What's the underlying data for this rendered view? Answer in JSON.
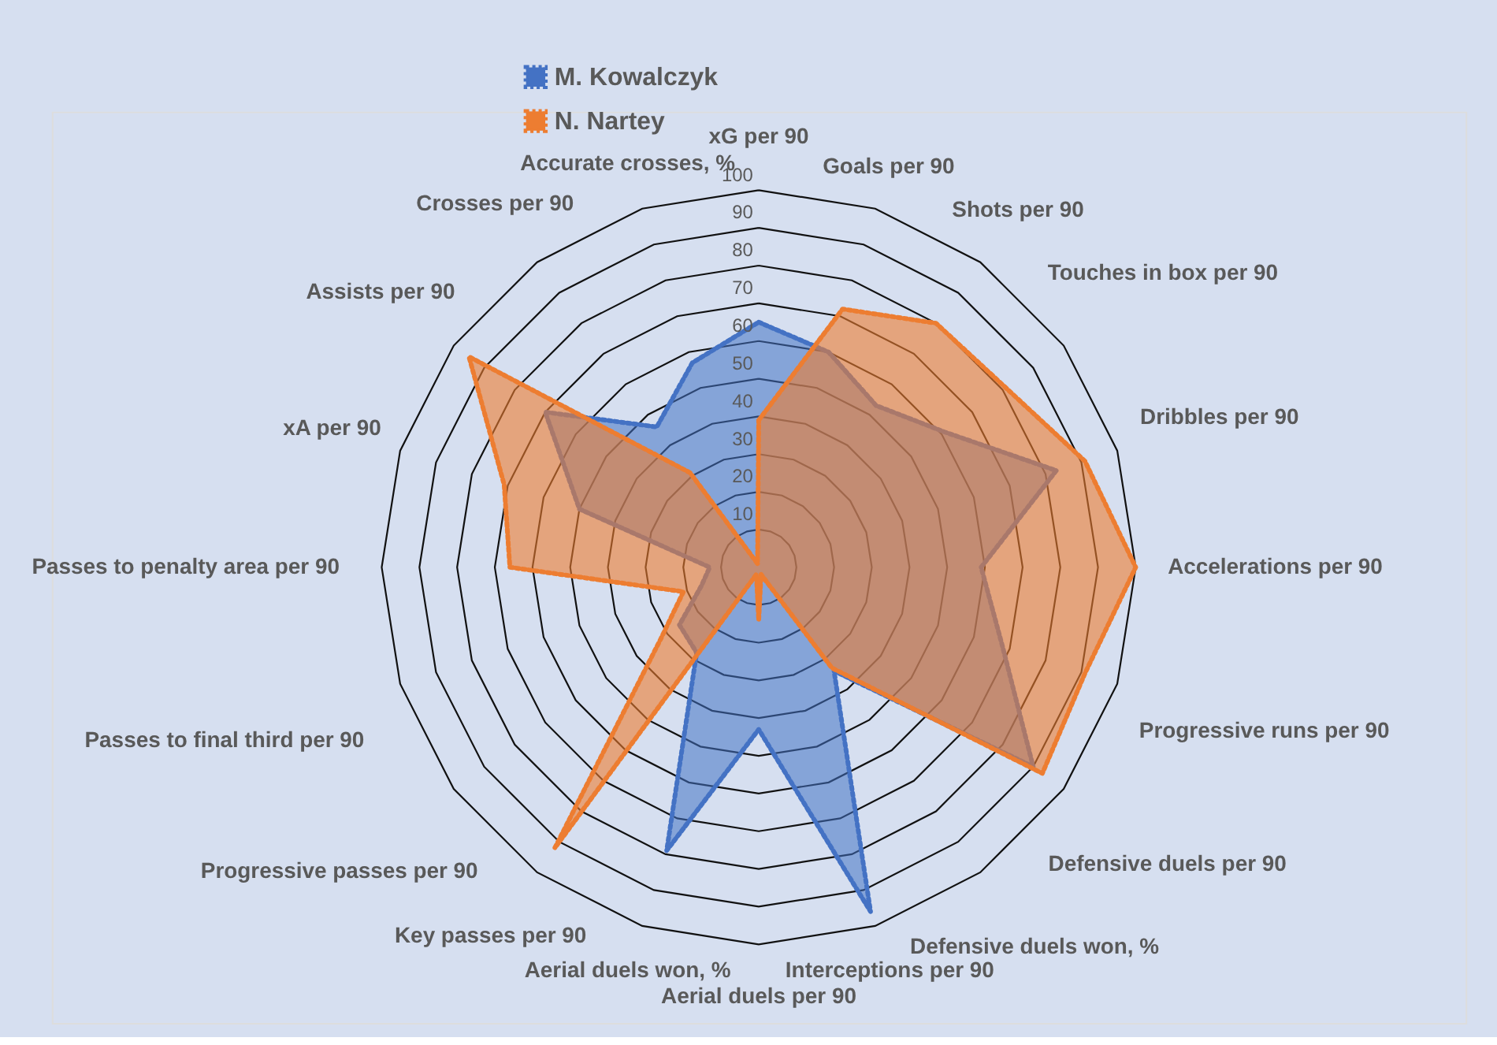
{
  "chart_data": {
    "type": "radar",
    "categories": [
      "xG per 90",
      "Goals per 90",
      "Shots per 90",
      "Touches in box per 90",
      "Dribbles per 90",
      "Accelerations per 90",
      "Progressive runs per 90",
      "Defensive duels per 90",
      "Defensive duels won, %",
      "Interceptions per 90",
      "Aerial duels per 90",
      "Aerial duels won, %",
      "Key passes per 90",
      "Progressive passes per 90",
      "Passes to final third per 90",
      "Passes to penalty area per 90",
      "xA per 90",
      "Assists per 90",
      "Crosses per 90",
      "Accurate crosses, %"
    ],
    "series": [
      {
        "name": "M. Kowalczyk",
        "color": "#4472c4",
        "values": [
          65,
          60,
          53,
          61,
          83,
          59,
          68,
          90,
          34,
          96,
          43,
          79,
          28,
          26,
          16,
          13,
          50,
          70,
          46,
          57
        ]
      },
      {
        "name": "N. Nartey",
        "color": "#ed7d31",
        "values": [
          39,
          72,
          80,
          81,
          91,
          100,
          91,
          93,
          33,
          2,
          14,
          2,
          92,
          32,
          21,
          66,
          71,
          95,
          31,
          1
        ]
      }
    ],
    "ylim": [
      0,
      100
    ],
    "yticks": [
      10,
      20,
      30,
      40,
      50,
      60,
      70,
      80,
      90,
      100
    ],
    "grid": true,
    "legend": "top",
    "line_style": "dotted"
  }
}
